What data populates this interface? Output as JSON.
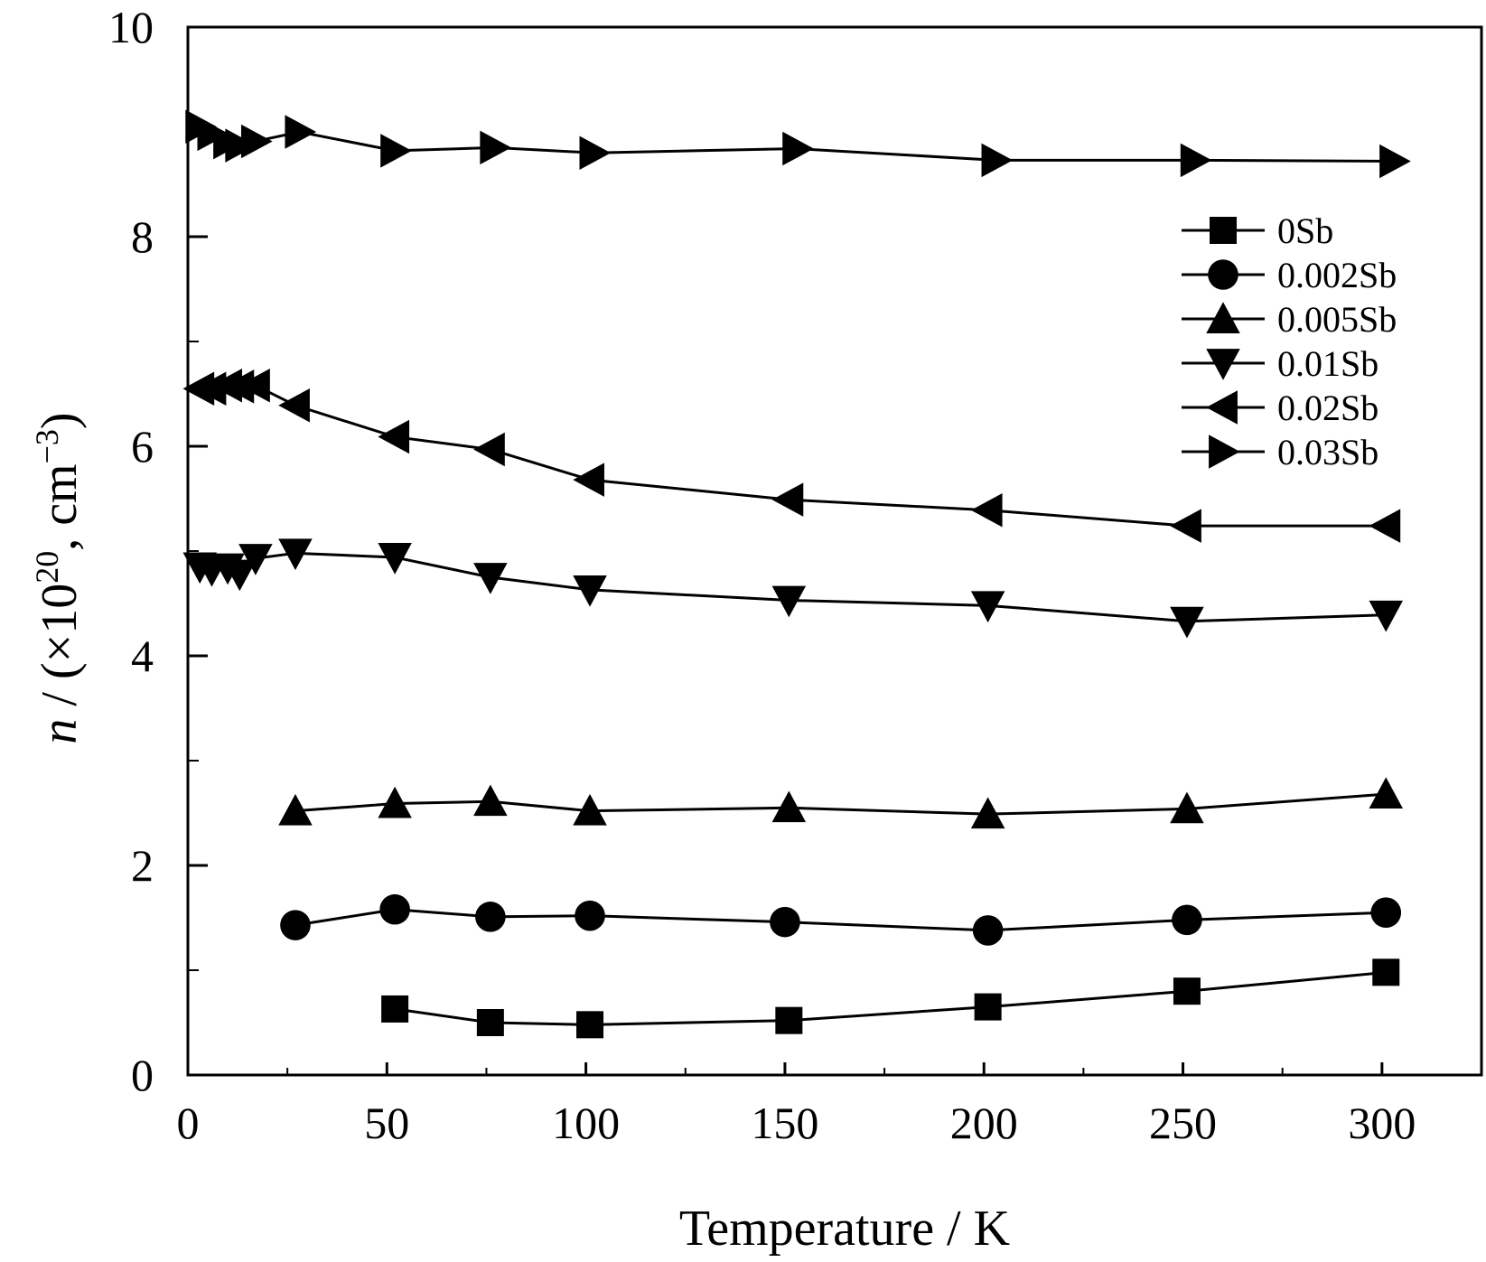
{
  "chart_data": {
    "type": "line",
    "xlabel": "Temperature / K",
    "ylabel": {
      "var": "n",
      "rest": " / (×10",
      "sup1": "20",
      "mid": ", cm",
      "sup2": "−3",
      "end": ")"
    },
    "xlim": [
      0,
      325
    ],
    "ylim": [
      0,
      10
    ],
    "x_ticks": [
      0,
      50,
      100,
      150,
      200,
      250,
      300
    ],
    "x_tick_labels": [
      "0",
      "50",
      "100",
      "150",
      "200",
      "250",
      "300"
    ],
    "y_ticks": [
      0,
      2,
      4,
      6,
      8,
      10
    ],
    "y_tick_labels": [
      "0",
      "2",
      "4",
      "6",
      "8",
      "10"
    ],
    "legend_position": "right, upper-middle",
    "grid": false,
    "series": [
      {
        "name": "0Sb",
        "marker": "square",
        "x": [
          52,
          76,
          101,
          151,
          201,
          251,
          301
        ],
        "y": [
          0.63,
          0.5,
          0.48,
          0.52,
          0.65,
          0.8,
          0.98
        ]
      },
      {
        "name": "0.002Sb",
        "marker": "circle",
        "x": [
          27,
          52,
          76,
          101,
          150,
          201,
          251,
          301
        ],
        "y": [
          1.43,
          1.58,
          1.51,
          1.52,
          1.46,
          1.38,
          1.48,
          1.55
        ]
      },
      {
        "name": "0.005Sb",
        "marker": "triangle-up",
        "x": [
          27,
          52,
          76,
          101,
          151,
          201,
          251,
          301
        ],
        "y": [
          2.52,
          2.59,
          2.61,
          2.52,
          2.55,
          2.49,
          2.54,
          2.68
        ]
      },
      {
        "name": "0.01Sb",
        "marker": "triangle-down",
        "x": [
          3,
          6,
          10,
          13,
          17,
          27,
          52,
          76,
          101,
          151,
          201,
          251,
          301
        ],
        "y": [
          4.85,
          4.82,
          4.84,
          4.78,
          4.93,
          4.98,
          4.94,
          4.75,
          4.63,
          4.53,
          4.48,
          4.33,
          4.39
        ]
      },
      {
        "name": "0.02Sb",
        "marker": "triangle-left",
        "x": [
          3,
          6,
          10,
          13,
          17,
          27,
          52,
          76,
          101,
          151,
          201,
          251,
          301
        ],
        "y": [
          6.55,
          6.55,
          6.58,
          6.57,
          6.58,
          6.39,
          6.09,
          5.97,
          5.68,
          5.49,
          5.39,
          5.24,
          5.24
        ]
      },
      {
        "name": "0.03Sb",
        "marker": "triangle-right",
        "x": [
          3,
          6,
          10,
          13,
          17,
          28,
          52,
          77,
          102,
          153,
          203,
          253,
          303
        ],
        "y": [
          9.05,
          8.98,
          8.9,
          8.87,
          8.91,
          9.0,
          8.82,
          8.85,
          8.8,
          8.84,
          8.73,
          8.73,
          8.72
        ]
      }
    ]
  }
}
